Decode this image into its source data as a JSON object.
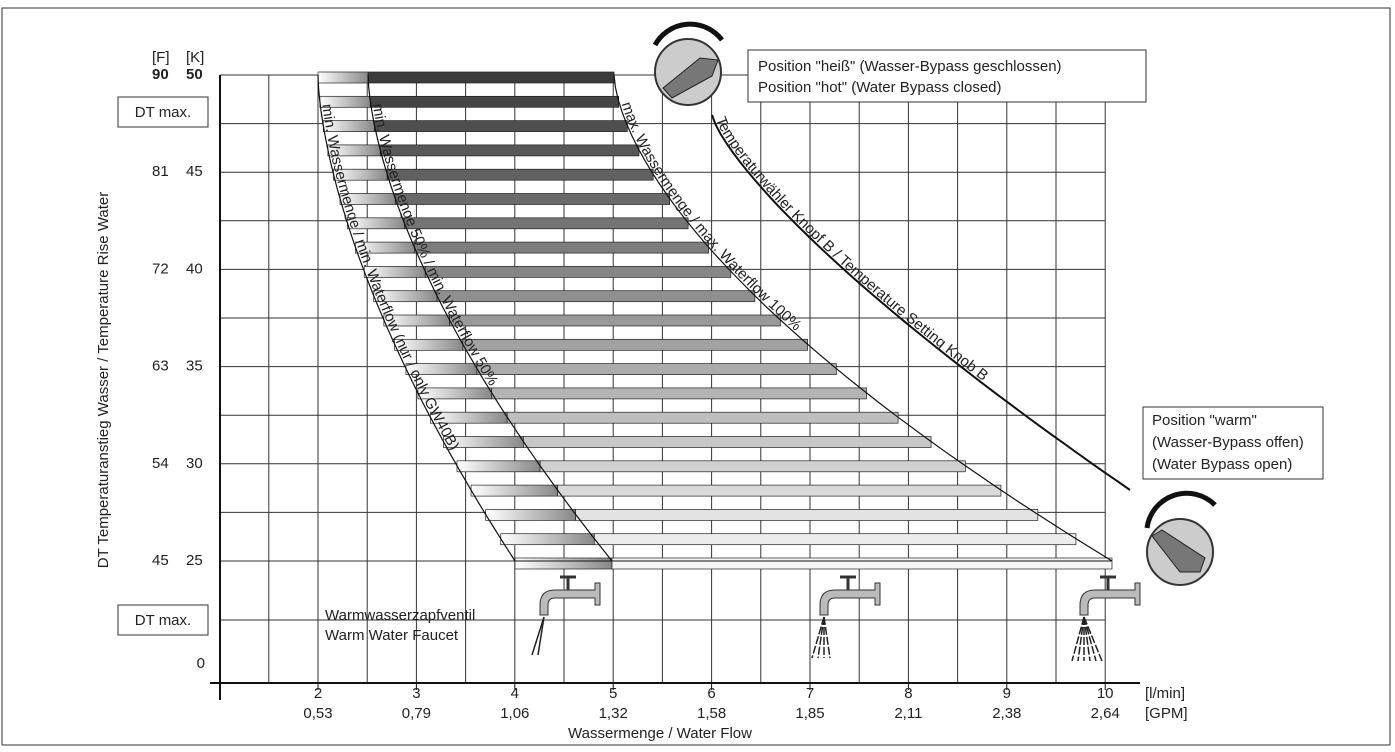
{
  "y_axis": {
    "title": "DT Temperaturanstieg Wasser / Temperature Rise Water",
    "unit_f": "[F]",
    "unit_k": "[K]",
    "ticks": [
      {
        "f": "90",
        "k": "50"
      },
      {
        "f": "81",
        "k": "45"
      },
      {
        "f": "72",
        "k": "40"
      },
      {
        "f": "63",
        "k": "35"
      },
      {
        "f": "54",
        "k": "30"
      },
      {
        "f": "45",
        "k": "25"
      }
    ],
    "dt_max": "DT max.",
    "zero": "0"
  },
  "x_axis": {
    "title": "Wassermenge / Water Flow",
    "unit_lmin": "[l/min]",
    "unit_gpm": "[GPM]",
    "ticks": [
      {
        "lmin": "2",
        "gpm": "0,53"
      },
      {
        "lmin": "3",
        "gpm": "0,79"
      },
      {
        "lmin": "4",
        "gpm": "1,06"
      },
      {
        "lmin": "5",
        "gpm": "1,32"
      },
      {
        "lmin": "6",
        "gpm": "1,58"
      },
      {
        "lmin": "7",
        "gpm": "1,85"
      },
      {
        "lmin": "8",
        "gpm": "2,11"
      },
      {
        "lmin": "9",
        "gpm": "2,38"
      },
      {
        "lmin": "10",
        "gpm": "2,64"
      }
    ]
  },
  "curves": {
    "min_only": "min. Wassermenge / min. Waterflow (nur / only GW40B)",
    "min_50": "min. Wassermenge 50% / min. Waterflow 50%",
    "max_100": "max. Wassermenge / max. Waterflow 100%",
    "knob": "Temperaturwähler Knopf B / Temperature Setting Knob B"
  },
  "positions": {
    "hot": [
      "Position \"heiß\" (Wasser-Bypass geschlossen)",
      "Position \"hot\" (Water Bypass closed)"
    ],
    "warm": [
      "Position \"warm\"",
      "(Wasser-Bypass offen)",
      "(Water Bypass open)"
    ]
  },
  "faucet": [
    "Warmwasserzapfventil",
    "Warm Water Faucet"
  ]
}
